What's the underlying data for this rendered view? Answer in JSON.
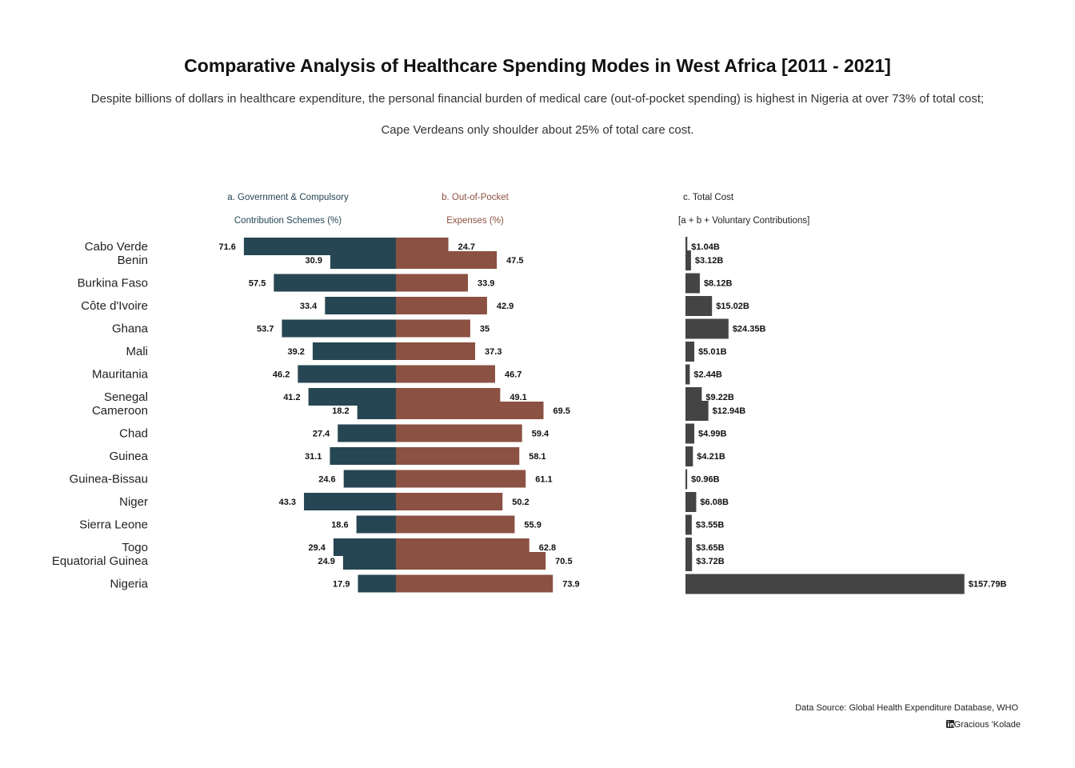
{
  "chart_data": {
    "type": "bar",
    "title": "Comparative Analysis of Healthcare Spending Modes in West Africa [2011 - 2021]",
    "subtitle_lines": [
      "Despite billions of dollars in healthcare expenditure, the personal financial burden of medical care (out-of-pocket spending) is highest in Nigeria at over 73% of total cost;",
      "Cape Verdeans only shoulder about 25% of total care cost."
    ],
    "headers": {
      "government": [
        "a. Government & Compulsory",
        "Contribution Schemes (%)"
      ],
      "out_of_pocket": [
        "b. Out-of-Pocket",
        "Expenses (%)"
      ],
      "total": [
        "c. Total Cost",
        "[a + b + Voluntary Contributions]"
      ]
    },
    "groups": [
      [
        0
      ],
      [
        1,
        2,
        3,
        4,
        5,
        6,
        7
      ],
      [
        8,
        9,
        10,
        11,
        12,
        13,
        14
      ],
      [
        15,
        16
      ]
    ],
    "categories": [
      "Cabo Verde",
      "Benin",
      "Burkina Faso",
      "Côte d'Ivoire",
      "Ghana",
      "Mali",
      "Mauritania",
      "Senegal",
      "Cameroon",
      "Chad",
      "Guinea",
      "Guinea-Bissau",
      "Niger",
      "Sierra Leone",
      "Togo",
      "Equatorial Guinea",
      "Nigeria"
    ],
    "series": [
      {
        "name": "a. Government & Compulsory Contribution Schemes (%)",
        "color": "#264653",
        "values": [
          71.6,
          30.9,
          57.5,
          33.4,
          53.7,
          39.2,
          46.2,
          41.2,
          18.2,
          27.4,
          31.1,
          24.6,
          43.3,
          18.6,
          29.4,
          24.9,
          17.9
        ]
      },
      {
        "name": "b. Out-of-Pocket Expenses (%)",
        "color": "#8b5142",
        "values": [
          24.7,
          47.5,
          33.9,
          42.9,
          35,
          37.3,
          46.7,
          49.1,
          69.5,
          59.4,
          58.1,
          61.1,
          50.2,
          55.9,
          62.8,
          70.5,
          73.9
        ]
      },
      {
        "name": "c. Total Cost",
        "color": "#444444",
        "values": [
          1.04,
          3.12,
          8.12,
          15.02,
          24.35,
          5.01,
          2.44,
          9.22,
          12.94,
          4.99,
          4.21,
          0.96,
          6.08,
          3.55,
          3.65,
          3.72,
          157.79
        ],
        "labels": [
          "$1.04B",
          "$3.12B",
          "$8.12B",
          "$15.02B",
          "$24.35B",
          "$5.01B",
          "$2.44B",
          "$9.22B",
          "$12.94B",
          "$4.99B",
          "$4.21B",
          "$0.96B",
          "$6.08B",
          "$3.55B",
          "$3.65B",
          "$3.72B",
          "$157.79B"
        ]
      }
    ],
    "colors": {
      "government": "#264653",
      "out_of_pocket": "#8b5142",
      "total": "#444444"
    }
  },
  "footer": {
    "source": "Data Source: Global Health Expenditure Database, WHO",
    "author": "Gracious 'Kolade",
    "author_icon": "linkedin-icon"
  }
}
